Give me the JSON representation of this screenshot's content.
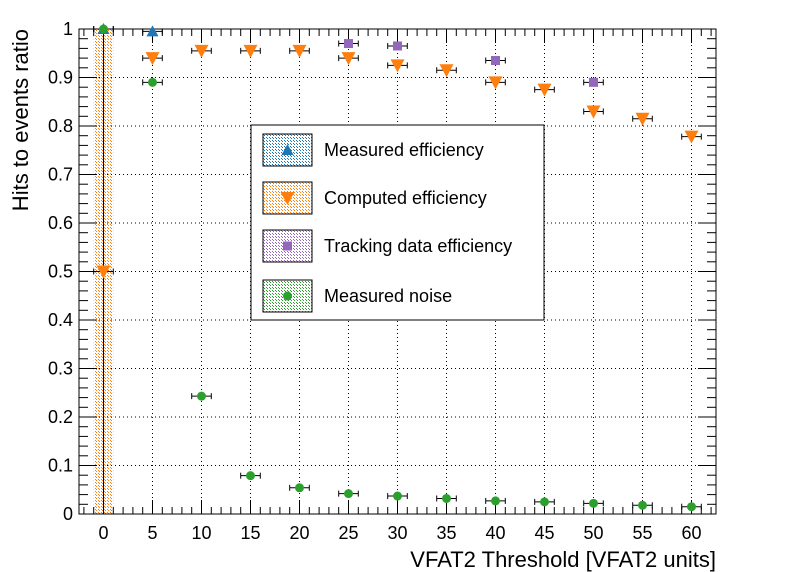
{
  "chart_data": {
    "type": "scatter",
    "xlabel": "VFAT2 Threshold [VFAT2 units]",
    "ylabel": "Hits to events ratio",
    "xlim": [
      -2.5,
      62.5
    ],
    "ylim": [
      0,
      1
    ],
    "x_ticks": [
      0,
      5,
      10,
      15,
      20,
      25,
      30,
      35,
      40,
      45,
      50,
      55,
      60
    ],
    "y_ticks": [
      0,
      0.1,
      0.2,
      0.3,
      0.4,
      0.5,
      0.6,
      0.7,
      0.8,
      0.9,
      1
    ],
    "x_tick_labels": [
      "0",
      "5",
      "10",
      "15",
      "20",
      "25",
      "30",
      "35",
      "40",
      "45",
      "50",
      "55",
      "60"
    ],
    "y_tick_labels": [
      "0",
      "0.1",
      "0.2",
      "0.3",
      "0.4",
      "0.5",
      "0.6",
      "0.7",
      "0.8",
      "0.9",
      "1"
    ],
    "x_error": 1,
    "grid": true,
    "legend_position": "center",
    "series": [
      {
        "name": "Measured efficiency",
        "marker": "triangle-up",
        "color": "#1f77b4",
        "points": [
          [
            0,
            1.0
          ],
          [
            5,
            0.995
          ]
        ]
      },
      {
        "name": "Computed efficiency",
        "marker": "triangle-down",
        "color": "#ff7f0e",
        "points": [
          [
            0,
            0.5
          ],
          [
            5,
            0.94
          ],
          [
            10,
            0.955
          ],
          [
            15,
            0.955
          ],
          [
            20,
            0.955
          ],
          [
            25,
            0.94
          ],
          [
            30,
            0.925
          ],
          [
            35,
            0.915
          ],
          [
            40,
            0.89
          ],
          [
            45,
            0.875
          ],
          [
            50,
            0.83
          ],
          [
            55,
            0.815
          ],
          [
            60,
            0.778
          ]
        ]
      },
      {
        "name": "Tracking data efficiency",
        "marker": "square",
        "color": "#9467bd",
        "points": [
          [
            25,
            0.97
          ],
          [
            30,
            0.965
          ],
          [
            40,
            0.935
          ],
          [
            50,
            0.89
          ]
        ]
      },
      {
        "name": "Measured noise",
        "marker": "circle",
        "color": "#2ca02c",
        "points": [
          [
            0,
            1.0
          ],
          [
            5,
            0.89
          ],
          [
            10,
            0.243
          ],
          [
            15,
            0.079
          ],
          [
            20,
            0.054
          ],
          [
            25,
            0.042
          ],
          [
            30,
            0.037
          ],
          [
            35,
            0.032
          ],
          [
            40,
            0.027
          ],
          [
            45,
            0.025
          ],
          [
            50,
            0.022
          ],
          [
            55,
            0.018
          ],
          [
            60,
            0.015
          ]
        ]
      }
    ],
    "shaded_band": {
      "x_from": -1,
      "x_to": 1,
      "color": "#ff7f0e"
    }
  }
}
